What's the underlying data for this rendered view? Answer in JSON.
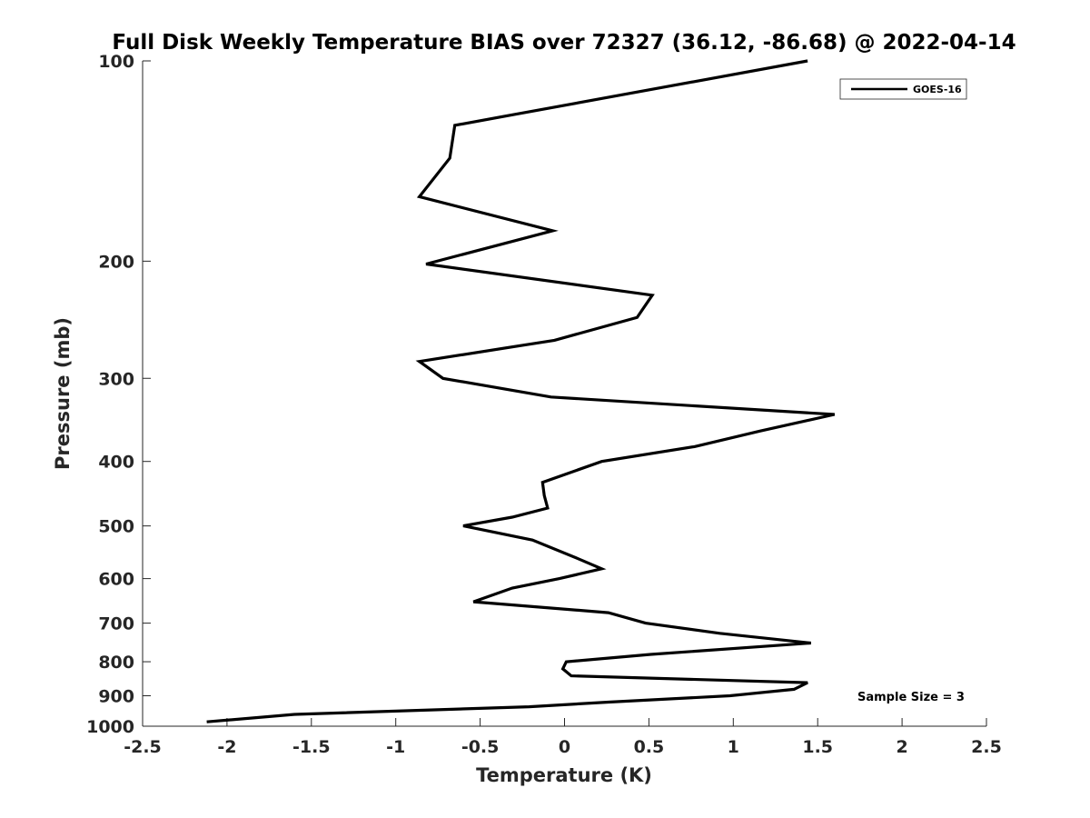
{
  "chart_data": {
    "type": "line",
    "title": "Full Disk Weekly Temperature BIAS over 72327 (36.12, -86.68) @ 2022-04-14",
    "xlabel": "Temperature (K)",
    "ylabel": "Pressure (mb)",
    "xlim": [
      -2.5,
      2.5
    ],
    "ylim": [
      1000,
      100
    ],
    "yscale": "log",
    "y_reversed": true,
    "grid": false,
    "xticks": [
      -2.5,
      -2,
      -1.5,
      -1,
      -0.5,
      0,
      0.5,
      1,
      1.5,
      2,
      2.5
    ],
    "xtick_labels": [
      "-2.5",
      "-2",
      "-1.5",
      "-1",
      "-0.5",
      "0",
      "0.5",
      "1",
      "1.5",
      "2",
      "2.5"
    ],
    "yticks": [
      100,
      200,
      300,
      400,
      500,
      600,
      700,
      800,
      900,
      1000
    ],
    "ytick_labels": [
      "100",
      "200",
      "300",
      "400",
      "500",
      "600",
      "700",
      "800",
      "900",
      "1000"
    ],
    "legend_position": "top-right",
    "series": [
      {
        "name": "GOES-16",
        "color": "#000000",
        "x": [
          1.44,
          -0.65,
          -0.68,
          -0.86,
          -0.07,
          -0.82,
          0.52,
          0.43,
          -0.06,
          -0.86,
          -0.72,
          -0.08,
          1.6,
          1.16,
          0.77,
          0.22,
          -0.13,
          -0.12,
          -0.1,
          -0.31,
          -0.6,
          -0.19,
          0.08,
          0.22,
          -0.03,
          -0.31,
          -0.54,
          0.26,
          0.48,
          0.92,
          1.46,
          0.51,
          0.01,
          -0.01,
          0.04,
          1.44,
          1.36,
          0.98,
          0.26,
          -0.21,
          -1.6,
          -2.12
        ],
        "y": [
          100,
          125,
          140,
          160,
          180,
          202,
          225,
          243,
          263,
          283,
          300,
          320,
          340,
          360,
          380,
          400,
          430,
          450,
          470,
          485,
          500,
          525,
          560,
          580,
          600,
          620,
          650,
          675,
          700,
          725,
          750,
          780,
          800,
          820,
          840,
          860,
          880,
          900,
          920,
          935,
          960,
          985
        ]
      }
    ]
  },
  "annotation": "Sample Size = 3"
}
